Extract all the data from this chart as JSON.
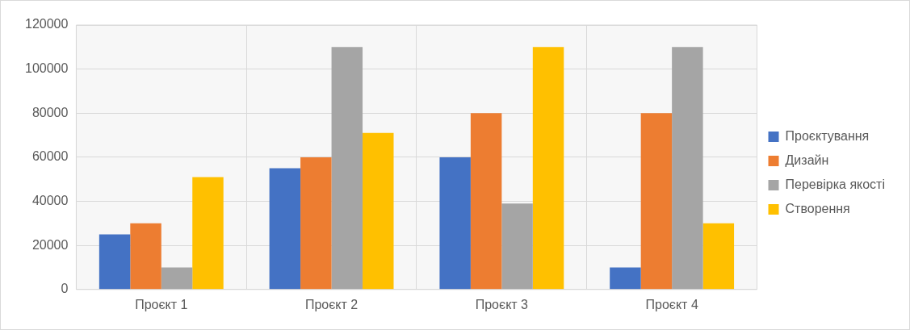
{
  "chart_data": {
    "type": "bar",
    "categories": [
      "Проєкт 1",
      "Проєкт 2",
      "Проєкт 3",
      "Проєкт 4"
    ],
    "series": [
      {
        "name": "Проєктування",
        "color": "#4472c4",
        "values": [
          25000,
          55000,
          60000,
          10000
        ]
      },
      {
        "name": "Дизайн",
        "color": "#ed7d31",
        "values": [
          30000,
          60000,
          80000,
          80000
        ]
      },
      {
        "name": "Перевірка якості",
        "color": "#a5a5a5",
        "values": [
          10000,
          110000,
          39000,
          110000
        ]
      },
      {
        "name": "Створення",
        "color": "#ffc000",
        "values": [
          51000,
          71000,
          110000,
          30000
        ]
      }
    ],
    "ylim": [
      0,
      120000
    ],
    "yticks": [
      0,
      20000,
      40000,
      60000,
      80000,
      100000,
      120000
    ],
    "grid": true,
    "legend": "right"
  }
}
